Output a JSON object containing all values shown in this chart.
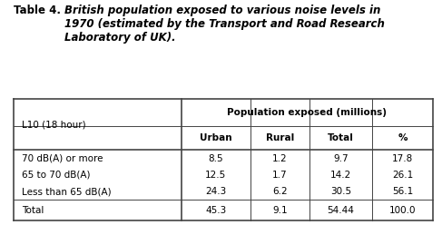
{
  "title_label": "Table 4.",
  "title_text": "British population exposed to various noise levels in\n1970 (estimated by the Transport and Road Research\nLaboratory of UK).",
  "col1_header": "L10 (18 hour)",
  "col_group_header": "Population exposed (millions)",
  "sub_headers": [
    "Urban",
    "Rural",
    "Total",
    "%"
  ],
  "row_labels": [
    "70 dB(A) or more",
    "65 to 70 dB(A)",
    "Less than 65 dB(A)",
    "Total"
  ],
  "data": [
    [
      "8.5",
      "1.2",
      "9.7",
      "17.8"
    ],
    [
      "12.5",
      "1.7",
      "14.2",
      "26.1"
    ],
    [
      "24.3",
      "6.2",
      "30.5",
      "56.1"
    ],
    [
      "45.3",
      "9.1",
      "54.44",
      "100.0"
    ]
  ],
  "bg_color": "#ffffff",
  "text_color": "#000000",
  "border_color": "#444444",
  "title_fontsize": 8.5,
  "table_fontsize": 7.5,
  "fig_width": 4.87,
  "fig_height": 2.48,
  "dpi": 100
}
